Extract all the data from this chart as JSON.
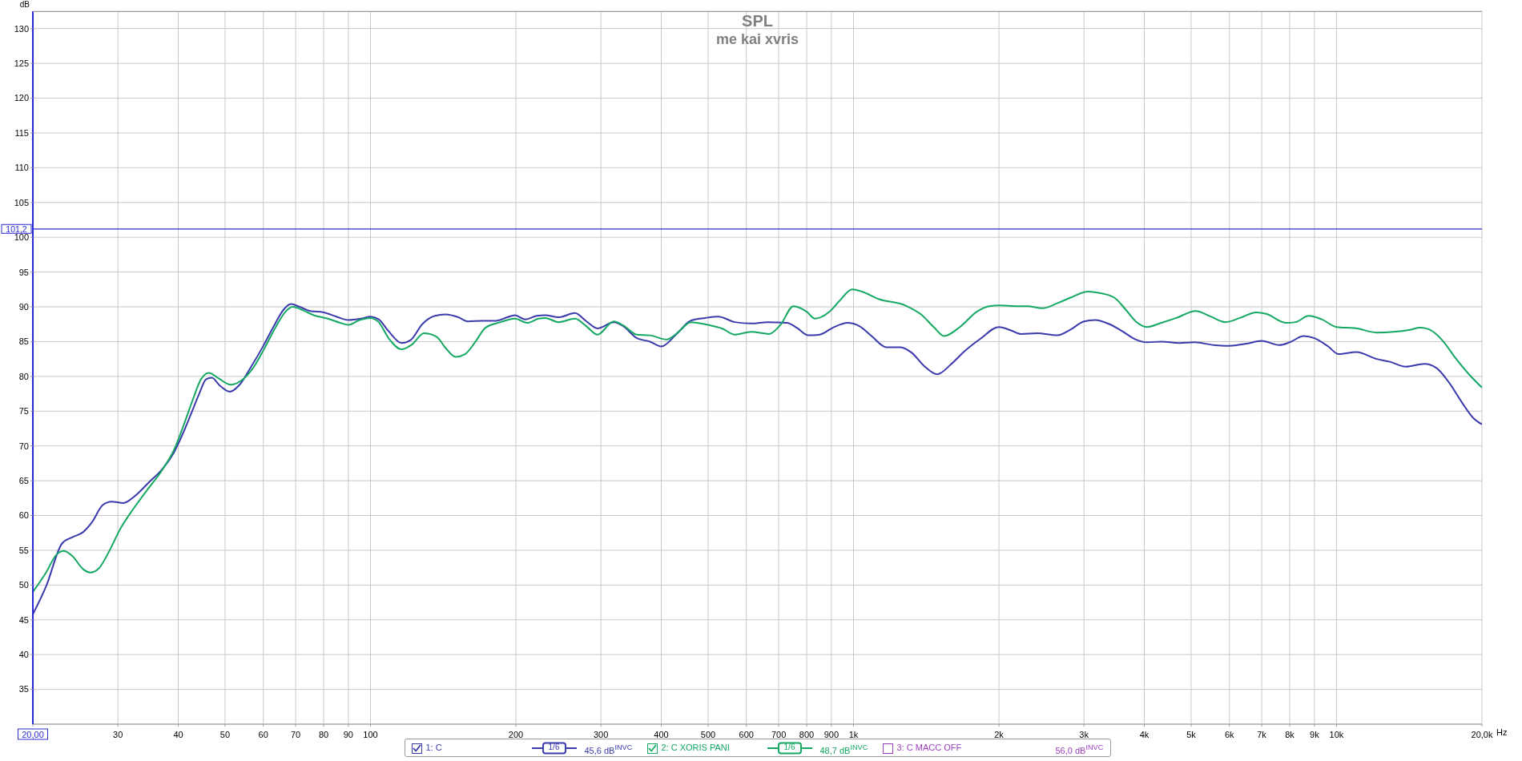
{
  "chart_data": {
    "type": "line",
    "title": "SPL",
    "subtitle": "me kai xvris",
    "xlabel": "Hz",
    "ylabel": "dB",
    "log": "x",
    "grid": true,
    "legend": "bottom",
    "xlim": [
      20,
      20000
    ],
    "ylim": [
      30,
      132.5
    ],
    "xticks": [
      {
        "value": 20,
        "label": "20,00"
      },
      30,
      40,
      50,
      60,
      70,
      80,
      90,
      100,
      200,
      300,
      400,
      500,
      600,
      700,
      800,
      900,
      {
        "value": 1000,
        "label": "1k"
      },
      {
        "value": 2000,
        "label": "2k"
      },
      {
        "value": 3000,
        "label": "3k"
      },
      {
        "value": 4000,
        "label": "4k"
      },
      {
        "value": 5000,
        "label": "5k"
      },
      {
        "value": 6000,
        "label": "6k"
      },
      {
        "value": 7000,
        "label": "7k"
      },
      {
        "value": 8000,
        "label": "8k"
      },
      {
        "value": 9000,
        "label": "9k"
      },
      {
        "value": 10000,
        "label": "10k"
      },
      {
        "value": 20000,
        "label": "20,0k"
      }
    ],
    "yticks": [
      35,
      40,
      45,
      50,
      55,
      60,
      65,
      70,
      75,
      80,
      85,
      90,
      95,
      100,
      105,
      110,
      115,
      120,
      125,
      130
    ],
    "ref_lines": [
      {
        "axis": "y",
        "value": 101.2,
        "label": "101,2",
        "color": "#2a2ad4"
      }
    ],
    "annotations": [
      "1/6",
      "45,6 dB$^{INVC}$",
      "1/6",
      "48,7 dB$^{INVC}$",
      "56,0 dB$^{INVC}$"
    ],
    "series": [
      {
        "name": "1: C",
        "color": "#3a3aad",
        "x": [
          20,
          21.3,
          23,
          24.2,
          25.4,
          26.5,
          27.9,
          29.1,
          30.8,
          32.4,
          34.7,
          37.1,
          39,
          40.3,
          42.4,
          44.2,
          45.7,
          46.9,
          48.9,
          51.1,
          53.6,
          56.4,
          59.8,
          63.4,
          66.1,
          68.4,
          71.3,
          75,
          80,
          85,
          90,
          95.6,
          100,
          104,
          109,
          116,
          121,
          128,
          136,
          143,
          152,
          159,
          171,
          182,
          192,
          199,
          209,
          221,
          230,
          245,
          265,
          280,
          295,
          319,
          334,
          356,
          379,
          400,
          429,
          460,
          493,
          525,
          568,
          614,
          664,
          728,
          763,
          806,
          851,
          906,
          972,
          1030,
          1090,
          1170,
          1250,
          1320,
          1400,
          1490,
          1590,
          1690,
          1830,
          2000,
          2120,
          2220,
          2400,
          2640,
          2810,
          3000,
          3160,
          3390,
          3600,
          3840,
          4050,
          4340,
          4730,
          5080,
          5570,
          6000,
          6510,
          7000,
          7610,
          8000,
          8550,
          9000,
          9610,
          10100,
          11000,
          12100,
          12900,
          13900,
          15200,
          16100,
          17100,
          18200,
          19200,
          20000
        ],
        "values": [
          45.8,
          49.8,
          56.0,
          56.9,
          57.6,
          59.0,
          61.5,
          62.0,
          61.8,
          62.7,
          64.7,
          66.7,
          68.8,
          70.8,
          74.4,
          77.5,
          79.6,
          79.8,
          78.6,
          77.8,
          78.8,
          81.2,
          84.2,
          87.5,
          89.6,
          90.4,
          90.0,
          89.4,
          89.2,
          88.6,
          88.1,
          88.3,
          88.6,
          88.2,
          86.5,
          84.8,
          85.2,
          87.5,
          88.7,
          88.9,
          88.5,
          87.9,
          88.0,
          88.0,
          88.5,
          88.8,
          88.2,
          88.7,
          88.8,
          88.5,
          89.1,
          87.9,
          86.9,
          87.8,
          87.2,
          85.5,
          85.0,
          84.3,
          86.0,
          88.0,
          88.4,
          88.6,
          87.8,
          87.6,
          87.8,
          87.7,
          87.0,
          85.9,
          86.0,
          87.0,
          87.7,
          87.2,
          85.8,
          84.2,
          84.2,
          83.4,
          81.5,
          80.3,
          81.7,
          83.5,
          85.4,
          87.1,
          86.6,
          86.1,
          86.2,
          85.9,
          86.7,
          87.9,
          88.1,
          87.5,
          86.5,
          85.3,
          84.9,
          85.0,
          84.8,
          84.9,
          84.5,
          84.4,
          84.7,
          85.1,
          84.5,
          84.9,
          85.8,
          85.5,
          84.3,
          83.2,
          83.5,
          82.5,
          82.1,
          81.4,
          81.8,
          81.2,
          79.1,
          76.2,
          74.0,
          73.1
        ]
      },
      {
        "name": "2: C XORIS PANI",
        "color": "#14a862",
        "x": [
          20,
          21.3,
          22.4,
          23.2,
          24.2,
          25.4,
          26.3,
          27.4,
          28.8,
          30.3,
          32.4,
          34.7,
          37.1,
          39.3,
          41,
          42.8,
          44.6,
          46.3,
          48.5,
          51.4,
          54.5,
          57.4,
          60.3,
          63.9,
          66.7,
          69,
          72.5,
          76.3,
          81.6,
          86.5,
          90,
          94.9,
          100,
          104,
          109,
          116,
          122,
          129,
          137,
          143,
          150,
          157,
          165,
          173,
          186,
          199,
          211,
          223,
          230,
          245,
          265,
          280,
          295,
          319,
          334,
          356,
          379,
          410,
          436,
          460,
          500,
          534,
          568,
          614,
          669,
          706,
          751,
          800,
          832,
          892,
          934,
          994,
          1040,
          1130,
          1280,
          1380,
          1470,
          1540,
          1660,
          1800,
          1910,
          2000,
          2190,
          2290,
          2460,
          2640,
          2810,
          3060,
          3230,
          3470,
          3660,
          3840,
          4050,
          4340,
          4660,
          5110,
          5490,
          5890,
          6310,
          6820,
          7150,
          7850,
          8230,
          8750,
          9320,
          9990,
          11000,
          12100,
          13100,
          14200,
          14900,
          15600,
          16600,
          17600,
          18800,
          20000
        ],
        "values": [
          49.0,
          51.8,
          54.4,
          54.9,
          54.1,
          52.3,
          51.8,
          52.4,
          54.9,
          58.0,
          61.1,
          63.9,
          66.6,
          69.6,
          72.9,
          76.5,
          79.6,
          80.5,
          79.7,
          78.8,
          79.6,
          81.4,
          84.0,
          87.3,
          89.3,
          90.0,
          89.5,
          88.8,
          88.3,
          87.7,
          87.4,
          88.1,
          88.4,
          87.8,
          85.5,
          83.9,
          84.6,
          86.2,
          85.7,
          84.1,
          82.8,
          83.2,
          85.0,
          87.0,
          87.8,
          88.3,
          87.7,
          88.3,
          88.4,
          87.8,
          88.3,
          87.2,
          86.0,
          87.9,
          87.3,
          86.0,
          85.9,
          85.3,
          86.5,
          87.8,
          87.4,
          86.9,
          86.0,
          86.4,
          86.1,
          87.4,
          90.1,
          89.3,
          88.3,
          89.3,
          90.8,
          92.5,
          92.2,
          91.1,
          90.2,
          88.9,
          87.0,
          85.8,
          87.1,
          89.3,
          90.1,
          90.2,
          90.1,
          90.1,
          89.8,
          90.5,
          91.3,
          92.2,
          92.0,
          91.3,
          89.6,
          87.9,
          87.1,
          87.7,
          88.4,
          89.4,
          88.6,
          87.8,
          88.4,
          89.2,
          89.0,
          87.7,
          87.8,
          88.7,
          88.2,
          87.1,
          86.9,
          86.3,
          86.4,
          86.7,
          87.0,
          86.7,
          85.1,
          82.7,
          80.3,
          78.4
        ]
      },
      {
        "name": "3: C MACC OFF",
        "color": "#9b3fc0"
      }
    ]
  }
}
